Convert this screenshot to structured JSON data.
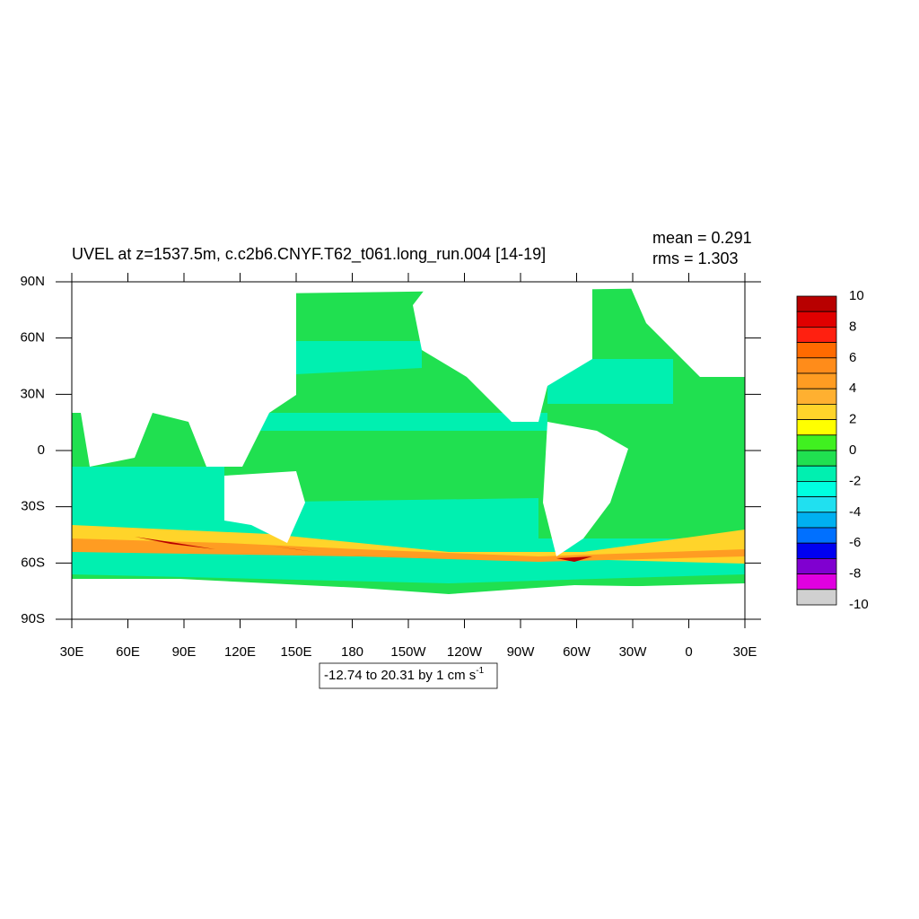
{
  "chart_data": {
    "type": "map",
    "title": "UVEL at z=1537.5m, c.c2b6.CNYF.T62_t061.long_run.004 [14-19]",
    "mean_label": "mean = 0.291",
    "rms_label": "rms = 1.303",
    "range_label": "-12.74 to 20.31 by 1 cm s",
    "range_label_sup": "-1",
    "xlim": [
      30,
      390
    ],
    "ylim": [
      -90,
      90
    ],
    "xticks": [
      {
        "value": 30,
        "label": "30E"
      },
      {
        "value": 60,
        "label": "60E"
      },
      {
        "value": 90,
        "label": "90E"
      },
      {
        "value": 120,
        "label": "120E"
      },
      {
        "value": 150,
        "label": "150E"
      },
      180,
      {
        "value": 210,
        "label": "150W"
      },
      {
        "value": 240,
        "label": "120W"
      },
      {
        "value": 270,
        "label": "90W"
      },
      {
        "value": 300,
        "label": "60W"
      },
      {
        "value": 330,
        "label": "30W"
      },
      {
        "value": 360,
        "label": "0"
      },
      {
        "value": 390,
        "label": "30E"
      }
    ],
    "yticks": [
      {
        "value": 90,
        "label": "90N"
      },
      {
        "value": 60,
        "label": "60N"
      },
      {
        "value": 30,
        "label": "30N"
      },
      0,
      {
        "value": -30,
        "label": "30S"
      },
      {
        "value": -60,
        "label": "60S"
      },
      {
        "value": -90,
        "label": "90S"
      }
    ],
    "colorbar": {
      "lim": [
        -10,
        10
      ],
      "ticks": [
        10,
        8,
        6,
        4,
        2,
        0,
        -2,
        -4,
        -6,
        -8,
        -10
      ],
      "colors": [
        "#b80000",
        "#e00000",
        "#ff2010",
        "#ff6a00",
        "#ff8c1a",
        "#ff9c22",
        "#ffb030",
        "#ffd42a",
        "#ffff00",
        "#40f020",
        "#20e050",
        "#00f0b0",
        "#00ffe0",
        "#20e0f0",
        "#00b0f0",
        "#0070ff",
        "#0000f0",
        "#8000d0",
        "#e000e0",
        "#d0d0d0",
        "#707070"
      ]
    }
  }
}
